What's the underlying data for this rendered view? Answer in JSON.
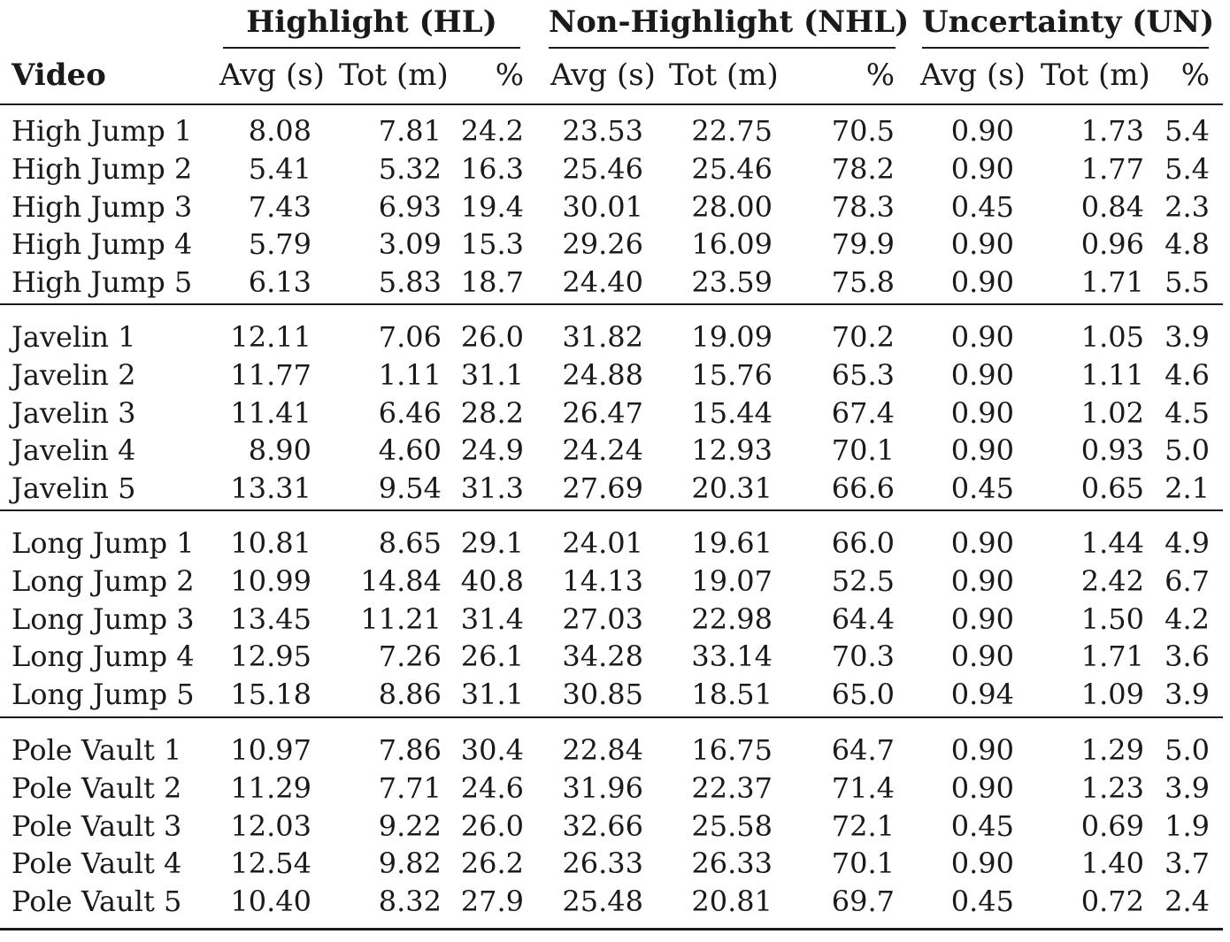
{
  "header": {
    "video_label": "Video",
    "groups": [
      "Highlight (HL)",
      "Non-Highlight (NHL)",
      "Uncertainty (UN)"
    ],
    "subcolumns": [
      "Avg (s)",
      "Tot (m)",
      "%"
    ]
  },
  "groups": [
    {
      "rows": [
        {
          "video": "High Jump 1",
          "values": [
            "8.08",
            "7.81",
            "24.2",
            "23.53",
            "22.75",
            "70.5",
            "0.90",
            "1.73",
            "5.4"
          ]
        },
        {
          "video": "High Jump 2",
          "values": [
            "5.41",
            "5.32",
            "16.3",
            "25.46",
            "25.46",
            "78.2",
            "0.90",
            "1.77",
            "5.4"
          ]
        },
        {
          "video": "High Jump 3",
          "values": [
            "7.43",
            "6.93",
            "19.4",
            "30.01",
            "28.00",
            "78.3",
            "0.45",
            "0.84",
            "2.3"
          ]
        },
        {
          "video": "High Jump 4",
          "values": [
            "5.79",
            "3.09",
            "15.3",
            "29.26",
            "16.09",
            "79.9",
            "0.90",
            "0.96",
            "4.8"
          ]
        },
        {
          "video": "High Jump 5",
          "values": [
            "6.13",
            "5.83",
            "18.7",
            "24.40",
            "23.59",
            "75.8",
            "0.90",
            "1.71",
            "5.5"
          ]
        }
      ]
    },
    {
      "rows": [
        {
          "video": "Javelin 1",
          "values": [
            "12.11",
            "7.06",
            "26.0",
            "31.82",
            "19.09",
            "70.2",
            "0.90",
            "1.05",
            "3.9"
          ]
        },
        {
          "video": "Javelin 2",
          "values": [
            "11.77",
            "1.11",
            "31.1",
            "24.88",
            "15.76",
            "65.3",
            "0.90",
            "1.11",
            "4.6"
          ]
        },
        {
          "video": "Javelin 3",
          "values": [
            "11.41",
            "6.46",
            "28.2",
            "26.47",
            "15.44",
            "67.4",
            "0.90",
            "1.02",
            "4.5"
          ]
        },
        {
          "video": "Javelin 4",
          "values": [
            "8.90",
            "4.60",
            "24.9",
            "24.24",
            "12.93",
            "70.1",
            "0.90",
            "0.93",
            "5.0"
          ]
        },
        {
          "video": "Javelin 5",
          "values": [
            "13.31",
            "9.54",
            "31.3",
            "27.69",
            "20.31",
            "66.6",
            "0.45",
            "0.65",
            "2.1"
          ]
        }
      ]
    },
    {
      "rows": [
        {
          "video": "Long Jump 1",
          "values": [
            "10.81",
            "8.65",
            "29.1",
            "24.01",
            "19.61",
            "66.0",
            "0.90",
            "1.44",
            "4.9"
          ]
        },
        {
          "video": "Long Jump 2",
          "values": [
            "10.99",
            "14.84",
            "40.8",
            "14.13",
            "19.07",
            "52.5",
            "0.90",
            "2.42",
            "6.7"
          ]
        },
        {
          "video": "Long Jump 3",
          "values": [
            "13.45",
            "11.21",
            "31.4",
            "27.03",
            "22.98",
            "64.4",
            "0.90",
            "1.50",
            "4.2"
          ]
        },
        {
          "video": "Long Jump 4",
          "values": [
            "12.95",
            "7.26",
            "26.1",
            "34.28",
            "33.14",
            "70.3",
            "0.90",
            "1.71",
            "3.6"
          ]
        },
        {
          "video": "Long Jump 5",
          "values": [
            "15.18",
            "8.86",
            "31.1",
            "30.85",
            "18.51",
            "65.0",
            "0.94",
            "1.09",
            "3.9"
          ]
        }
      ]
    },
    {
      "rows": [
        {
          "video": "Pole Vault 1",
          "values": [
            "10.97",
            "7.86",
            "30.4",
            "22.84",
            "16.75",
            "64.7",
            "0.90",
            "1.29",
            "5.0"
          ]
        },
        {
          "video": "Pole Vault 2",
          "values": [
            "11.29",
            "7.71",
            "24.6",
            "31.96",
            "22.37",
            "71.4",
            "0.90",
            "1.23",
            "3.9"
          ]
        },
        {
          "video": "Pole Vault 3",
          "values": [
            "12.03",
            "9.22",
            "26.0",
            "32.66",
            "25.58",
            "72.1",
            "0.45",
            "0.69",
            "1.9"
          ]
        },
        {
          "video": "Pole Vault 4",
          "values": [
            "12.54",
            "9.82",
            "26.2",
            "26.33",
            "26.33",
            "70.1",
            "0.90",
            "1.40",
            "3.7"
          ]
        },
        {
          "video": "Pole Vault 5",
          "values": [
            "10.40",
            "8.32",
            "27.9",
            "25.48",
            "20.81",
            "69.7",
            "0.45",
            "0.72",
            "2.4"
          ]
        }
      ]
    }
  ]
}
